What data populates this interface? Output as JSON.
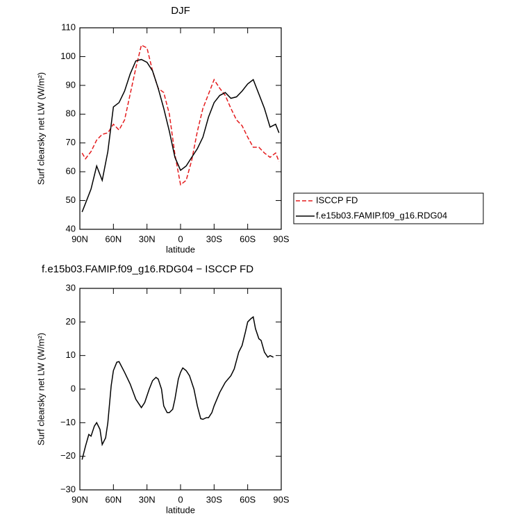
{
  "chart_data": [
    {
      "type": "line",
      "title": "DJF",
      "xlabel": "latitude",
      "ylabel": "Surf clearsky net LW (W/m²)",
      "x": [
        88,
        85,
        80,
        75,
        70,
        65,
        60,
        55,
        50,
        45,
        40,
        35,
        30,
        25,
        20,
        15,
        10,
        5,
        0,
        -5,
        -10,
        -15,
        -20,
        -25,
        -30,
        -35,
        -40,
        -45,
        -50,
        -55,
        -60,
        -65,
        -70,
        -75,
        -80,
        -85,
        -88
      ],
      "series": [
        {
          "name": "ISCCP FD",
          "color": "#e41a1c",
          "linestyle": "dashed",
          "values": [
            66.5,
            64.5,
            67,
            71,
            73,
            73.5,
            76.5,
            74.5,
            78,
            87,
            96,
            104,
            103,
            95,
            89,
            87.5,
            80,
            66,
            55.5,
            57,
            64,
            74,
            82,
            87,
            92,
            89,
            86.5,
            82,
            78,
            76,
            72,
            68.5,
            68.5,
            66.5,
            65,
            66.5,
            63.5
          ]
        },
        {
          "name": "f.e15b03.FAMIP.f09_g16.RDG04",
          "color": "#000000",
          "linestyle": "solid",
          "values": [
            46,
            49,
            54,
            62,
            57,
            67,
            82.5,
            84,
            88,
            94,
            98.5,
            99,
            98,
            95,
            89,
            82,
            74,
            65,
            60.5,
            62,
            65,
            68,
            72,
            79,
            84,
            86.5,
            87.5,
            85.5,
            86,
            88,
            90.5,
            92,
            87,
            82,
            75.5,
            76.5,
            73.5
          ]
        }
      ],
      "xlim": [
        90,
        -90
      ],
      "xticks": [
        {
          "value": 90,
          "label": "90N"
        },
        {
          "value": 60,
          "label": "60N"
        },
        {
          "value": 30,
          "label": "30N"
        },
        0,
        {
          "value": -30,
          "label": "30S"
        },
        {
          "value": -60,
          "label": "60S"
        },
        {
          "value": -90,
          "label": "90S"
        }
      ],
      "ylim": [
        40,
        110
      ],
      "yticks": [
        40,
        50,
        60,
        70,
        80,
        90,
        100,
        110
      ],
      "legend": "right"
    },
    {
      "type": "line",
      "title": "f.e15b03.FAMIP.f09_g16.RDG04 − ISCCP FD",
      "xlabel": "latitude",
      "ylabel": "Surf clearsky net LW (W/m²)",
      "x": [
        88,
        85,
        82,
        80,
        77,
        75,
        72,
        70,
        67,
        65,
        62,
        60,
        57,
        55,
        50,
        45,
        40,
        35,
        32,
        28,
        25,
        22,
        20,
        17,
        15,
        12,
        10,
        7,
        5,
        2,
        0,
        -2,
        -5,
        -8,
        -12,
        -15,
        -18,
        -20,
        -23,
        -25,
        -28,
        -30,
        -35,
        -40,
        -45,
        -48,
        -52,
        -55,
        -58,
        -60,
        -63,
        -65,
        -67,
        -70,
        -72,
        -75,
        -78,
        -80,
        -83
      ],
      "series": [
        {
          "name": null,
          "color": "#000000",
          "linestyle": "solid",
          "values": [
            -21,
            -17,
            -13.5,
            -14,
            -11,
            -10,
            -12,
            -16.5,
            -14.5,
            -10,
            1,
            5.5,
            8,
            8.2,
            5,
            1.5,
            -3,
            -5.5,
            -4,
            0,
            2.5,
            3.5,
            3,
            0,
            -5,
            -7,
            -7,
            -6,
            -3,
            3,
            5,
            6.3,
            5.5,
            4,
            0,
            -5,
            -8.8,
            -9,
            -8.5,
            -8.5,
            -7,
            -5,
            -1,
            2,
            4,
            6,
            11,
            13,
            17,
            20,
            21,
            21.5,
            18,
            15,
            14.5,
            11,
            9.5,
            10,
            9.5
          ]
        }
      ],
      "xlim": [
        90,
        -90
      ],
      "xticks": [
        {
          "value": 90,
          "label": "90N"
        },
        {
          "value": 60,
          "label": "60N"
        },
        {
          "value": 30,
          "label": "30N"
        },
        0,
        {
          "value": -30,
          "label": "30S"
        },
        {
          "value": -60,
          "label": "60S"
        },
        {
          "value": -90,
          "label": "90S"
        }
      ],
      "ylim": [
        -30,
        30
      ],
      "yticks": [
        {
          "value": -30,
          "label": "−30"
        },
        {
          "value": -20,
          "label": "−20"
        },
        {
          "value": -10,
          "label": "−10"
        },
        0,
        10,
        20,
        30
      ]
    }
  ]
}
